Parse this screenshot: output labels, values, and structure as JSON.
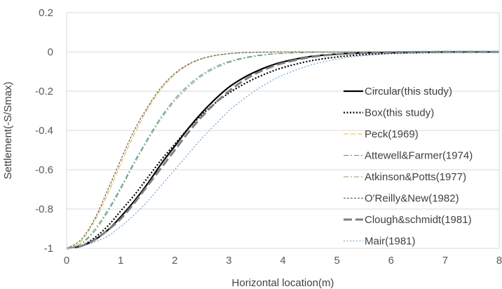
{
  "chart_data": {
    "type": "line",
    "title": "",
    "xlabel": "Horizontal location(m)",
    "ylabel": "Settlement(-S/Smax)",
    "xlim": [
      0,
      8
    ],
    "ylim": [
      -1,
      0.2
    ],
    "x_ticks": [
      "0",
      "1",
      "2",
      "3",
      "4",
      "5",
      "6",
      "7",
      "8"
    ],
    "y_ticks": [
      "0.2",
      "0",
      "-0.2",
      "-0.4",
      "-0.6",
      "-0.8",
      "-1"
    ],
    "grid": "horizontal",
    "legend_position": "right",
    "x": [
      0,
      0.25,
      0.5,
      0.75,
      1,
      1.25,
      1.5,
      1.75,
      2,
      2.25,
      2.5,
      2.75,
      3,
      3.25,
      3.5,
      3.75,
      4,
      4.5,
      5,
      5.5,
      6,
      6.5,
      7,
      7.5,
      8
    ],
    "series": [
      {
        "name": "Circular(this study)",
        "color": "#000000",
        "style": "solid",
        "values": [
          -1.0,
          -0.99,
          -0.96,
          -0.91,
          -0.84,
          -0.76,
          -0.67,
          -0.57,
          -0.48,
          -0.39,
          -0.31,
          -0.24,
          -0.18,
          -0.135,
          -0.1,
          -0.072,
          -0.051,
          -0.024,
          -0.011,
          -0.005,
          -0.002,
          -0.001,
          0,
          0,
          0
        ]
      },
      {
        "name": "Box(this study)",
        "color": "#000000",
        "style": "dotted",
        "values": [
          -1.0,
          -0.99,
          -0.95,
          -0.89,
          -0.81,
          -0.73,
          -0.64,
          -0.55,
          -0.47,
          -0.39,
          -0.32,
          -0.26,
          -0.21,
          -0.168,
          -0.133,
          -0.104,
          -0.08,
          -0.046,
          -0.026,
          -0.014,
          -0.007,
          -0.004,
          -0.002,
          -0.001,
          0
        ]
      },
      {
        "name": "Peck(1969)",
        "color": "#f5b335",
        "style": "longdash",
        "values": [
          -1.0,
          -0.97,
          -0.87,
          -0.73,
          -0.57,
          -0.42,
          -0.29,
          -0.19,
          -0.115,
          -0.066,
          -0.036,
          -0.018,
          -0.009,
          -0.004,
          -0.002,
          -0.001,
          0,
          0,
          0,
          0,
          0,
          0,
          0,
          0,
          0
        ]
      },
      {
        "name": "Attewell&Farmer(1974)",
        "color": "#5b87c5",
        "style": "dashdot",
        "values": [
          -1.0,
          -0.98,
          -0.91,
          -0.81,
          -0.69,
          -0.56,
          -0.44,
          -0.33,
          -0.24,
          -0.17,
          -0.115,
          -0.076,
          -0.049,
          -0.031,
          -0.019,
          -0.011,
          -0.007,
          -0.002,
          -0.001,
          0,
          0,
          0,
          0,
          0,
          0
        ]
      },
      {
        "name": "Atkinson&Potts(1977)",
        "color": "#70ad47",
        "style": "dashdot",
        "values": [
          -1.0,
          -0.98,
          -0.92,
          -0.82,
          -0.7,
          -0.57,
          -0.45,
          -0.34,
          -0.25,
          -0.18,
          -0.123,
          -0.083,
          -0.054,
          -0.035,
          -0.022,
          -0.013,
          -0.008,
          -0.003,
          -0.001,
          0,
          0,
          0,
          0,
          0,
          0
        ]
      },
      {
        "name": "O'Reilly&New(1982)",
        "color": "#44546a",
        "style": "shortdash",
        "values": [
          -1.0,
          -0.96,
          -0.86,
          -0.71,
          -0.55,
          -0.4,
          -0.28,
          -0.18,
          -0.11,
          -0.063,
          -0.034,
          -0.018,
          -0.009,
          -0.004,
          -0.002,
          -0.001,
          0,
          0,
          0,
          0,
          0,
          0,
          0,
          0,
          0
        ]
      },
      {
        "name": "Clough&schmidt(1981)",
        "color": "#7f7f7f",
        "style": "bigdash",
        "values": [
          -1.0,
          -0.99,
          -0.96,
          -0.91,
          -0.85,
          -0.77,
          -0.68,
          -0.59,
          -0.5,
          -0.41,
          -0.33,
          -0.26,
          -0.2,
          -0.15,
          -0.11,
          -0.08,
          -0.057,
          -0.027,
          -0.012,
          -0.005,
          -0.002,
          -0.001,
          0,
          0,
          0
        ]
      },
      {
        "name": "Mair(1981)",
        "color": "#5b9bd5",
        "style": "dotted",
        "values": [
          -1.0,
          -0.99,
          -0.97,
          -0.94,
          -0.89,
          -0.83,
          -0.76,
          -0.68,
          -0.6,
          -0.52,
          -0.44,
          -0.37,
          -0.3,
          -0.245,
          -0.195,
          -0.153,
          -0.118,
          -0.068,
          -0.037,
          -0.019,
          -0.009,
          -0.004,
          -0.002,
          -0.001,
          0
        ]
      }
    ]
  }
}
